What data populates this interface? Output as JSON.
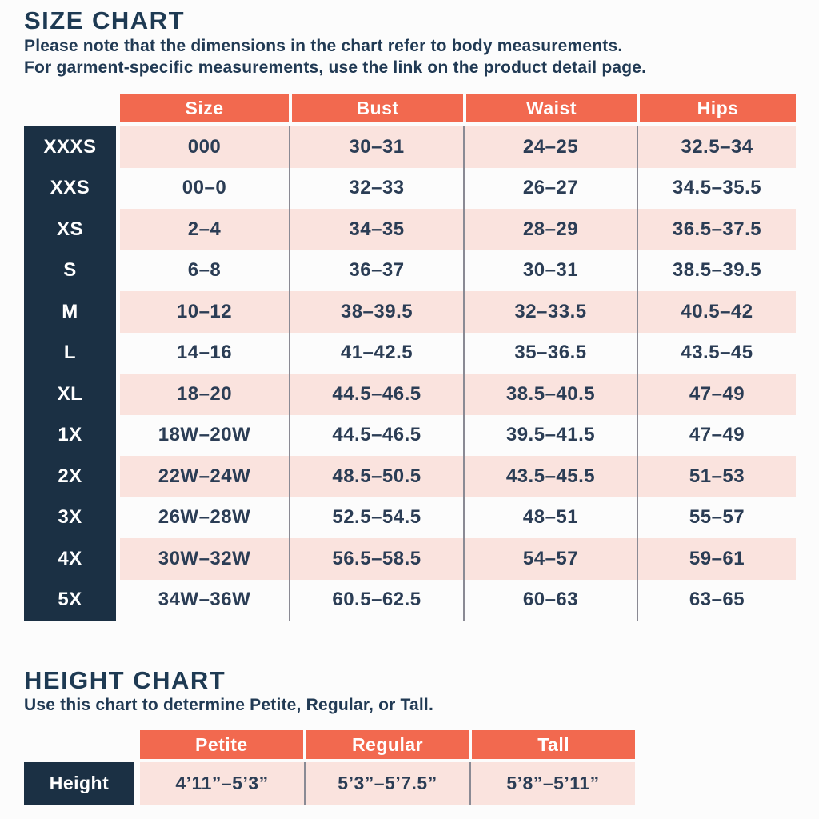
{
  "colors": {
    "accent_orange": "#f2694f",
    "navy": "#1b3044",
    "row_pink": "#fae3de",
    "text_navy": "#1e3a53",
    "divider_gray": "#8a8a94",
    "background": "#fcfcfc"
  },
  "size_chart": {
    "title": "SIZE CHART",
    "note_line1": "Please note that the dimensions in the chart refer to body measurements.",
    "note_line2": "For garment-specific measurements, use the link on the product detail page.",
    "columns": [
      "Size",
      "Bust",
      "Waist",
      "Hips"
    ],
    "rows": [
      {
        "label": "XXXS",
        "size": "000",
        "bust": "30–31",
        "waist": "24–25",
        "hips": "32.5–34"
      },
      {
        "label": "XXS",
        "size": "00–0",
        "bust": "32–33",
        "waist": "26–27",
        "hips": "34.5–35.5"
      },
      {
        "label": "XS",
        "size": "2–4",
        "bust": "34–35",
        "waist": "28–29",
        "hips": "36.5–37.5"
      },
      {
        "label": "S",
        "size": "6–8",
        "bust": "36–37",
        "waist": "30–31",
        "hips": "38.5–39.5"
      },
      {
        "label": "M",
        "size": "10–12",
        "bust": "38–39.5",
        "waist": "32–33.5",
        "hips": "40.5–42"
      },
      {
        "label": "L",
        "size": "14–16",
        "bust": "41–42.5",
        "waist": "35–36.5",
        "hips": "43.5–45"
      },
      {
        "label": "XL",
        "size": "18–20",
        "bust": "44.5–46.5",
        "waist": "38.5–40.5",
        "hips": "47–49"
      },
      {
        "label": "1X",
        "size": "18W–20W",
        "bust": "44.5–46.5",
        "waist": "39.5–41.5",
        "hips": "47–49"
      },
      {
        "label": "2X",
        "size": "22W–24W",
        "bust": "48.5–50.5",
        "waist": "43.5–45.5",
        "hips": "51–53"
      },
      {
        "label": "3X",
        "size": "26W–28W",
        "bust": "52.5–54.5",
        "waist": "48–51",
        "hips": "55–57"
      },
      {
        "label": "4X",
        "size": "30W–32W",
        "bust": "56.5–58.5",
        "waist": "54–57",
        "hips": "59–61"
      },
      {
        "label": "5X",
        "size": "34W–36W",
        "bust": "60.5–62.5",
        "waist": "60–63",
        "hips": "63–65"
      }
    ]
  },
  "height_chart": {
    "title": "HEIGHT CHART",
    "note": "Use this chart to determine Petite, Regular, or Tall.",
    "columns": [
      "Petite",
      "Regular",
      "Tall"
    ],
    "row_label": "Height",
    "values": [
      "4’11”–5’3”",
      "5’3”–5’7.5”",
      "5’8”–5’11”"
    ]
  },
  "chart_data": [
    {
      "type": "table",
      "title": "SIZE CHART",
      "columns": [
        "Size",
        "Bust",
        "Waist",
        "Hips"
      ],
      "row_labels": [
        "XXXS",
        "XXS",
        "XS",
        "S",
        "M",
        "L",
        "XL",
        "1X",
        "2X",
        "3X",
        "4X",
        "5X"
      ],
      "rows": [
        [
          "000",
          "30–31",
          "24–25",
          "32.5–34"
        ],
        [
          "00–0",
          "32–33",
          "26–27",
          "34.5–35.5"
        ],
        [
          "2–4",
          "34–35",
          "28–29",
          "36.5–37.5"
        ],
        [
          "6–8",
          "36–37",
          "30–31",
          "38.5–39.5"
        ],
        [
          "10–12",
          "38–39.5",
          "32–33.5",
          "40.5–42"
        ],
        [
          "14–16",
          "41–42.5",
          "35–36.5",
          "43.5–45"
        ],
        [
          "18–20",
          "44.5–46.5",
          "38.5–40.5",
          "47–49"
        ],
        [
          "18W–20W",
          "44.5–46.5",
          "39.5–41.5",
          "47–49"
        ],
        [
          "22W–24W",
          "48.5–50.5",
          "43.5–45.5",
          "51–53"
        ],
        [
          "26W–28W",
          "52.5–54.5",
          "48–51",
          "55–57"
        ],
        [
          "30W–32W",
          "56.5–58.5",
          "54–57",
          "59–61"
        ],
        [
          "34W–36W",
          "60.5–62.5",
          "60–63",
          "63–65"
        ]
      ]
    },
    {
      "type": "table",
      "title": "HEIGHT CHART",
      "columns": [
        "Petite",
        "Regular",
        "Tall"
      ],
      "row_labels": [
        "Height"
      ],
      "rows": [
        [
          "4’11”–5’3”",
          "5’3”–5’7.5”",
          "5’8”–5’11”"
        ]
      ]
    }
  ]
}
